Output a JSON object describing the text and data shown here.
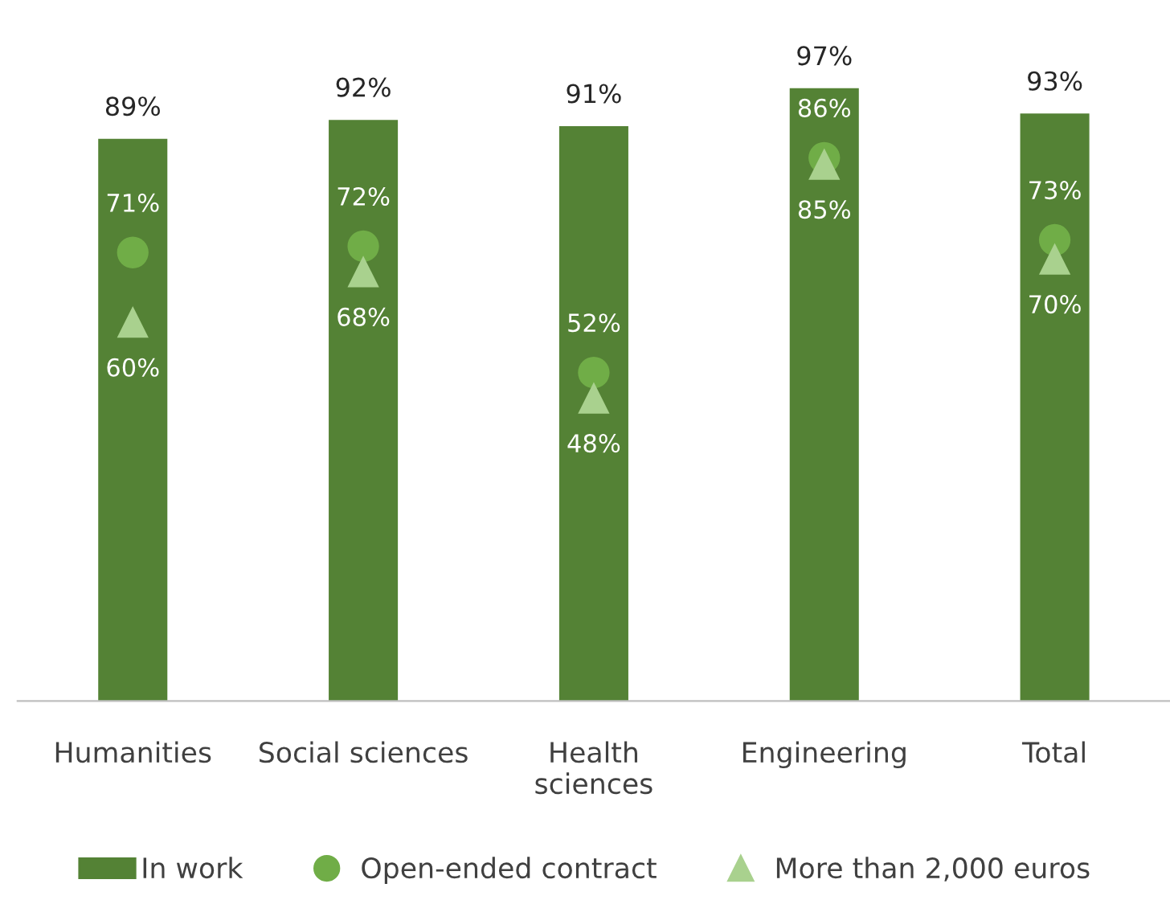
{
  "chart_data": {
    "type": "bar",
    "categories": [
      "Humanities",
      "Social sciences",
      "Health\nsciences",
      "Engineering",
      "Total"
    ],
    "series": [
      {
        "name": "In work",
        "color": "#548235",
        "values": [
          89,
          92,
          91,
          97,
          93
        ],
        "value_labels": [
          "89%",
          "92%",
          "91%",
          "97%",
          "93%"
        ]
      },
      {
        "name": "Open-ended contract",
        "type": "scatter",
        "marker": "circle",
        "color": "#70ad47",
        "values": [
          71,
          72,
          52,
          86,
          73
        ],
        "value_labels": [
          "71%",
          "72%",
          "52%",
          "86%",
          "73%"
        ]
      },
      {
        "name": "More than 2,000 euros",
        "type": "scatter",
        "marker": "triangle",
        "color": "#a9d18e",
        "values": [
          60,
          68,
          48,
          85,
          70
        ],
        "value_labels": [
          "60%",
          "68%",
          "48%",
          "85%",
          "70%"
        ]
      }
    ],
    "tick_labels": "x",
    "grid": false,
    "legend": "bottom"
  }
}
